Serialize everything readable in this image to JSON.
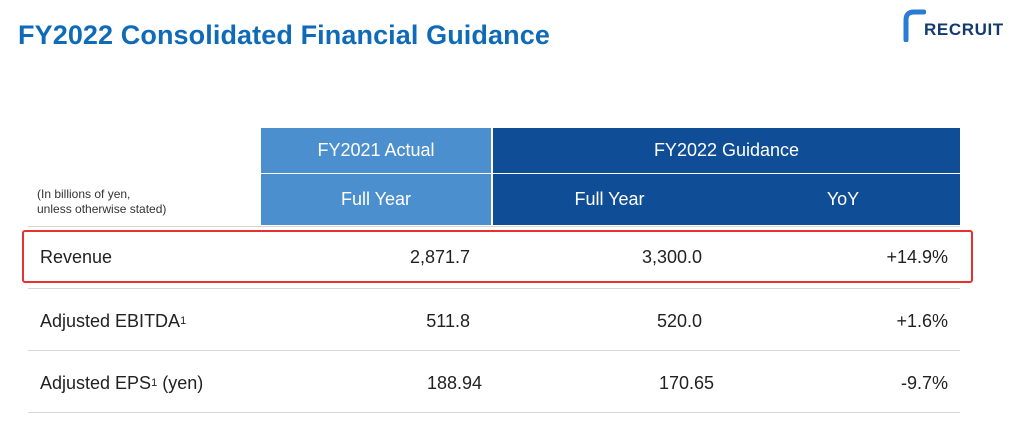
{
  "title": "FY2022 Consolidated Financial Guidance",
  "logo": {
    "text": "RECRUIT",
    "color": "#123a6e",
    "accent": "#2a7bd3"
  },
  "note": {
    "line1": "(In billions of yen,",
    "line2": "unless otherwise stated)"
  },
  "header": {
    "actual_group": "FY2021 Actual",
    "actual_sub": "Full Year",
    "guidance_group": "FY2022 Guidance",
    "guidance_sub": "Full Year",
    "yoy": "YoY"
  },
  "rows": [
    {
      "label": "Revenue",
      "sup": "",
      "suffix": "",
      "actual": "2,871.7",
      "guidance": "3,300.0",
      "yoy": "+14.9%",
      "highlighted": true
    },
    {
      "label": "Adjusted EBITDA",
      "sup": "1",
      "suffix": "",
      "actual": "511.8",
      "guidance": "520.0",
      "yoy": "+1.6%",
      "highlighted": false
    },
    {
      "label": "Adjusted EPS",
      "sup": "1",
      "suffix": " (yen)",
      "actual": "188.94",
      "guidance": "170.65",
      "yoy": "-9.7%",
      "highlighted": false
    }
  ],
  "colors": {
    "title": "#0f6bb8",
    "actual_header": "#4b8fcf",
    "guidance_header": "#0f4e96",
    "highlight_border": "#e8312f"
  }
}
